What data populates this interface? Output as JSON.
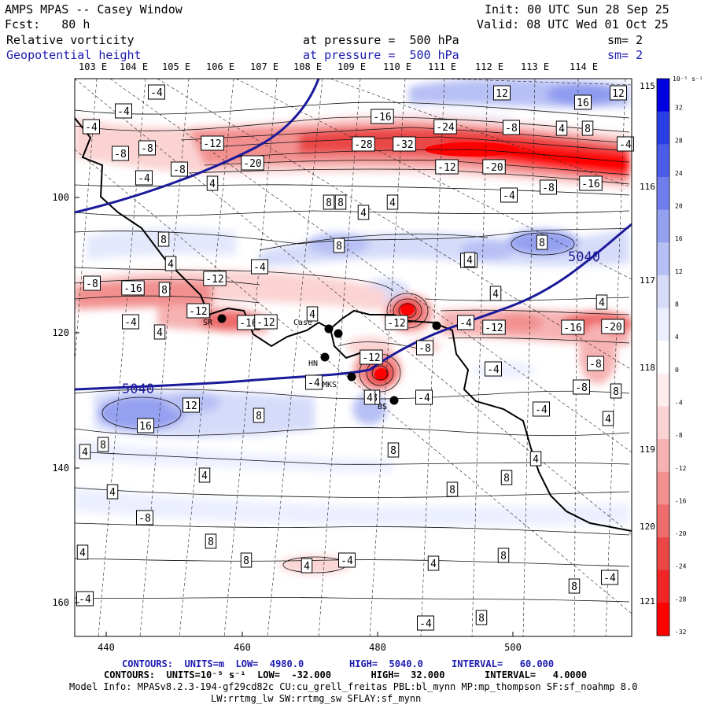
{
  "header": {
    "title": "AMPS MPAS -- Casey Window",
    "forecast": "Fcst:   80 h",
    "init": "Init: 00 UTC Sun 28 Sep 25",
    "valid": "Valid: 08 UTC Wed 01 Oct 25",
    "field1_name": "Relative vorticity",
    "field1_level": "at pressure =  500 hPa",
    "field1_sm": "sm= 2",
    "field2_name": "Geopotential height",
    "field2_level": "at pressure =  500 hPa",
    "field2_sm": "sm= 2"
  },
  "axes": {
    "top_lon_labels": [
      "103 E",
      "104 E",
      "105 E",
      "106 E",
      "107 E",
      "108 E",
      "109 E",
      "110 E",
      "111 E",
      "112 E",
      "113 E",
      "114 E"
    ],
    "right_lon_labels": [
      "115 E",
      "116 E",
      "117 E",
      "118 E",
      "119 E",
      "120 E",
      "121 E"
    ],
    "bottom_ticks": [
      "440",
      "460",
      "480",
      "500"
    ],
    "left_ticks": [
      "100",
      "120",
      "140",
      "160"
    ]
  },
  "colorbar": {
    "unit": "10⁻⁵ s⁻¹",
    "labels": [
      "32",
      "28",
      "24",
      "20",
      "16",
      "12",
      "8",
      "4",
      "0",
      "-4",
      "-8",
      "-12",
      "-16",
      "-20",
      "-24",
      "-28",
      "-32"
    ],
    "colors": [
      "#0000e0",
      "#2a3ee6",
      "#4a5ce8",
      "#6f7eec",
      "#94a0f0",
      "#b7c0f5",
      "#d6dbf9",
      "#ecefff",
      "#ffffff",
      "#ffecec",
      "#fbd3d3",
      "#f6b2b2",
      "#f29090",
      "#ee6c6c",
      "#ea4646",
      "#f02525",
      "#ff0000"
    ]
  },
  "map": {
    "height_contour_label": "5040",
    "stations": [
      "SR",
      "Case",
      "HN",
      "MKS",
      "BS"
    ],
    "vorticity_labels": [
      "-4",
      "-4",
      "-4",
      "-8",
      "-8",
      "-8",
      "-4",
      "4",
      "-12",
      "-20",
      "-28",
      "-32",
      "-16",
      "-24",
      "-8",
      "-12",
      "-20",
      "-4",
      "4",
      "8",
      "4",
      "-16",
      "-8",
      "-4",
      "4",
      "8",
      "12",
      "12",
      "16",
      "8",
      "4",
      "8",
      "-12",
      "-16",
      "-8",
      "-12",
      "-16",
      "-4",
      "4",
      "4",
      "-12",
      "-12",
      "-8",
      "-4",
      "-12",
      "-16",
      "-20",
      "-8",
      "4",
      "-12",
      "8",
      "12",
      "16",
      "4",
      "8",
      "4",
      "-4",
      "-4",
      "4",
      "-4",
      "-4",
      "-8",
      "8",
      "4",
      "8",
      "8",
      "8",
      "8",
      "4",
      "4",
      "8",
      "8",
      "-8",
      "-4",
      "4",
      "8",
      "8",
      "4",
      "-4",
      "4",
      "8",
      "4",
      "8",
      "8",
      "-4",
      "-4",
      "8",
      "-4",
      "4",
      "-4"
    ]
  },
  "footer": {
    "line1": "CONTOURS:  UNITS=m  LOW=  4980.0        HIGH=  5040.0     INTERVAL=   60.000",
    "line2": "CONTOURS:  UNITS=10⁻⁵ s⁻¹  LOW=  -32.000       HIGH=  32.000       INTERVAL=   4.0000",
    "line3": "Model Info: MPASv8.2.3-194-gf29cd82c CU:cu_grell_freitas PBL:bl_mynn MP:mp_thompson SF:sf_noahmp 8.0",
    "line4": "LW:rrtmg_lw SW:rrtmg_sw SFLAY:sf_mynn"
  }
}
